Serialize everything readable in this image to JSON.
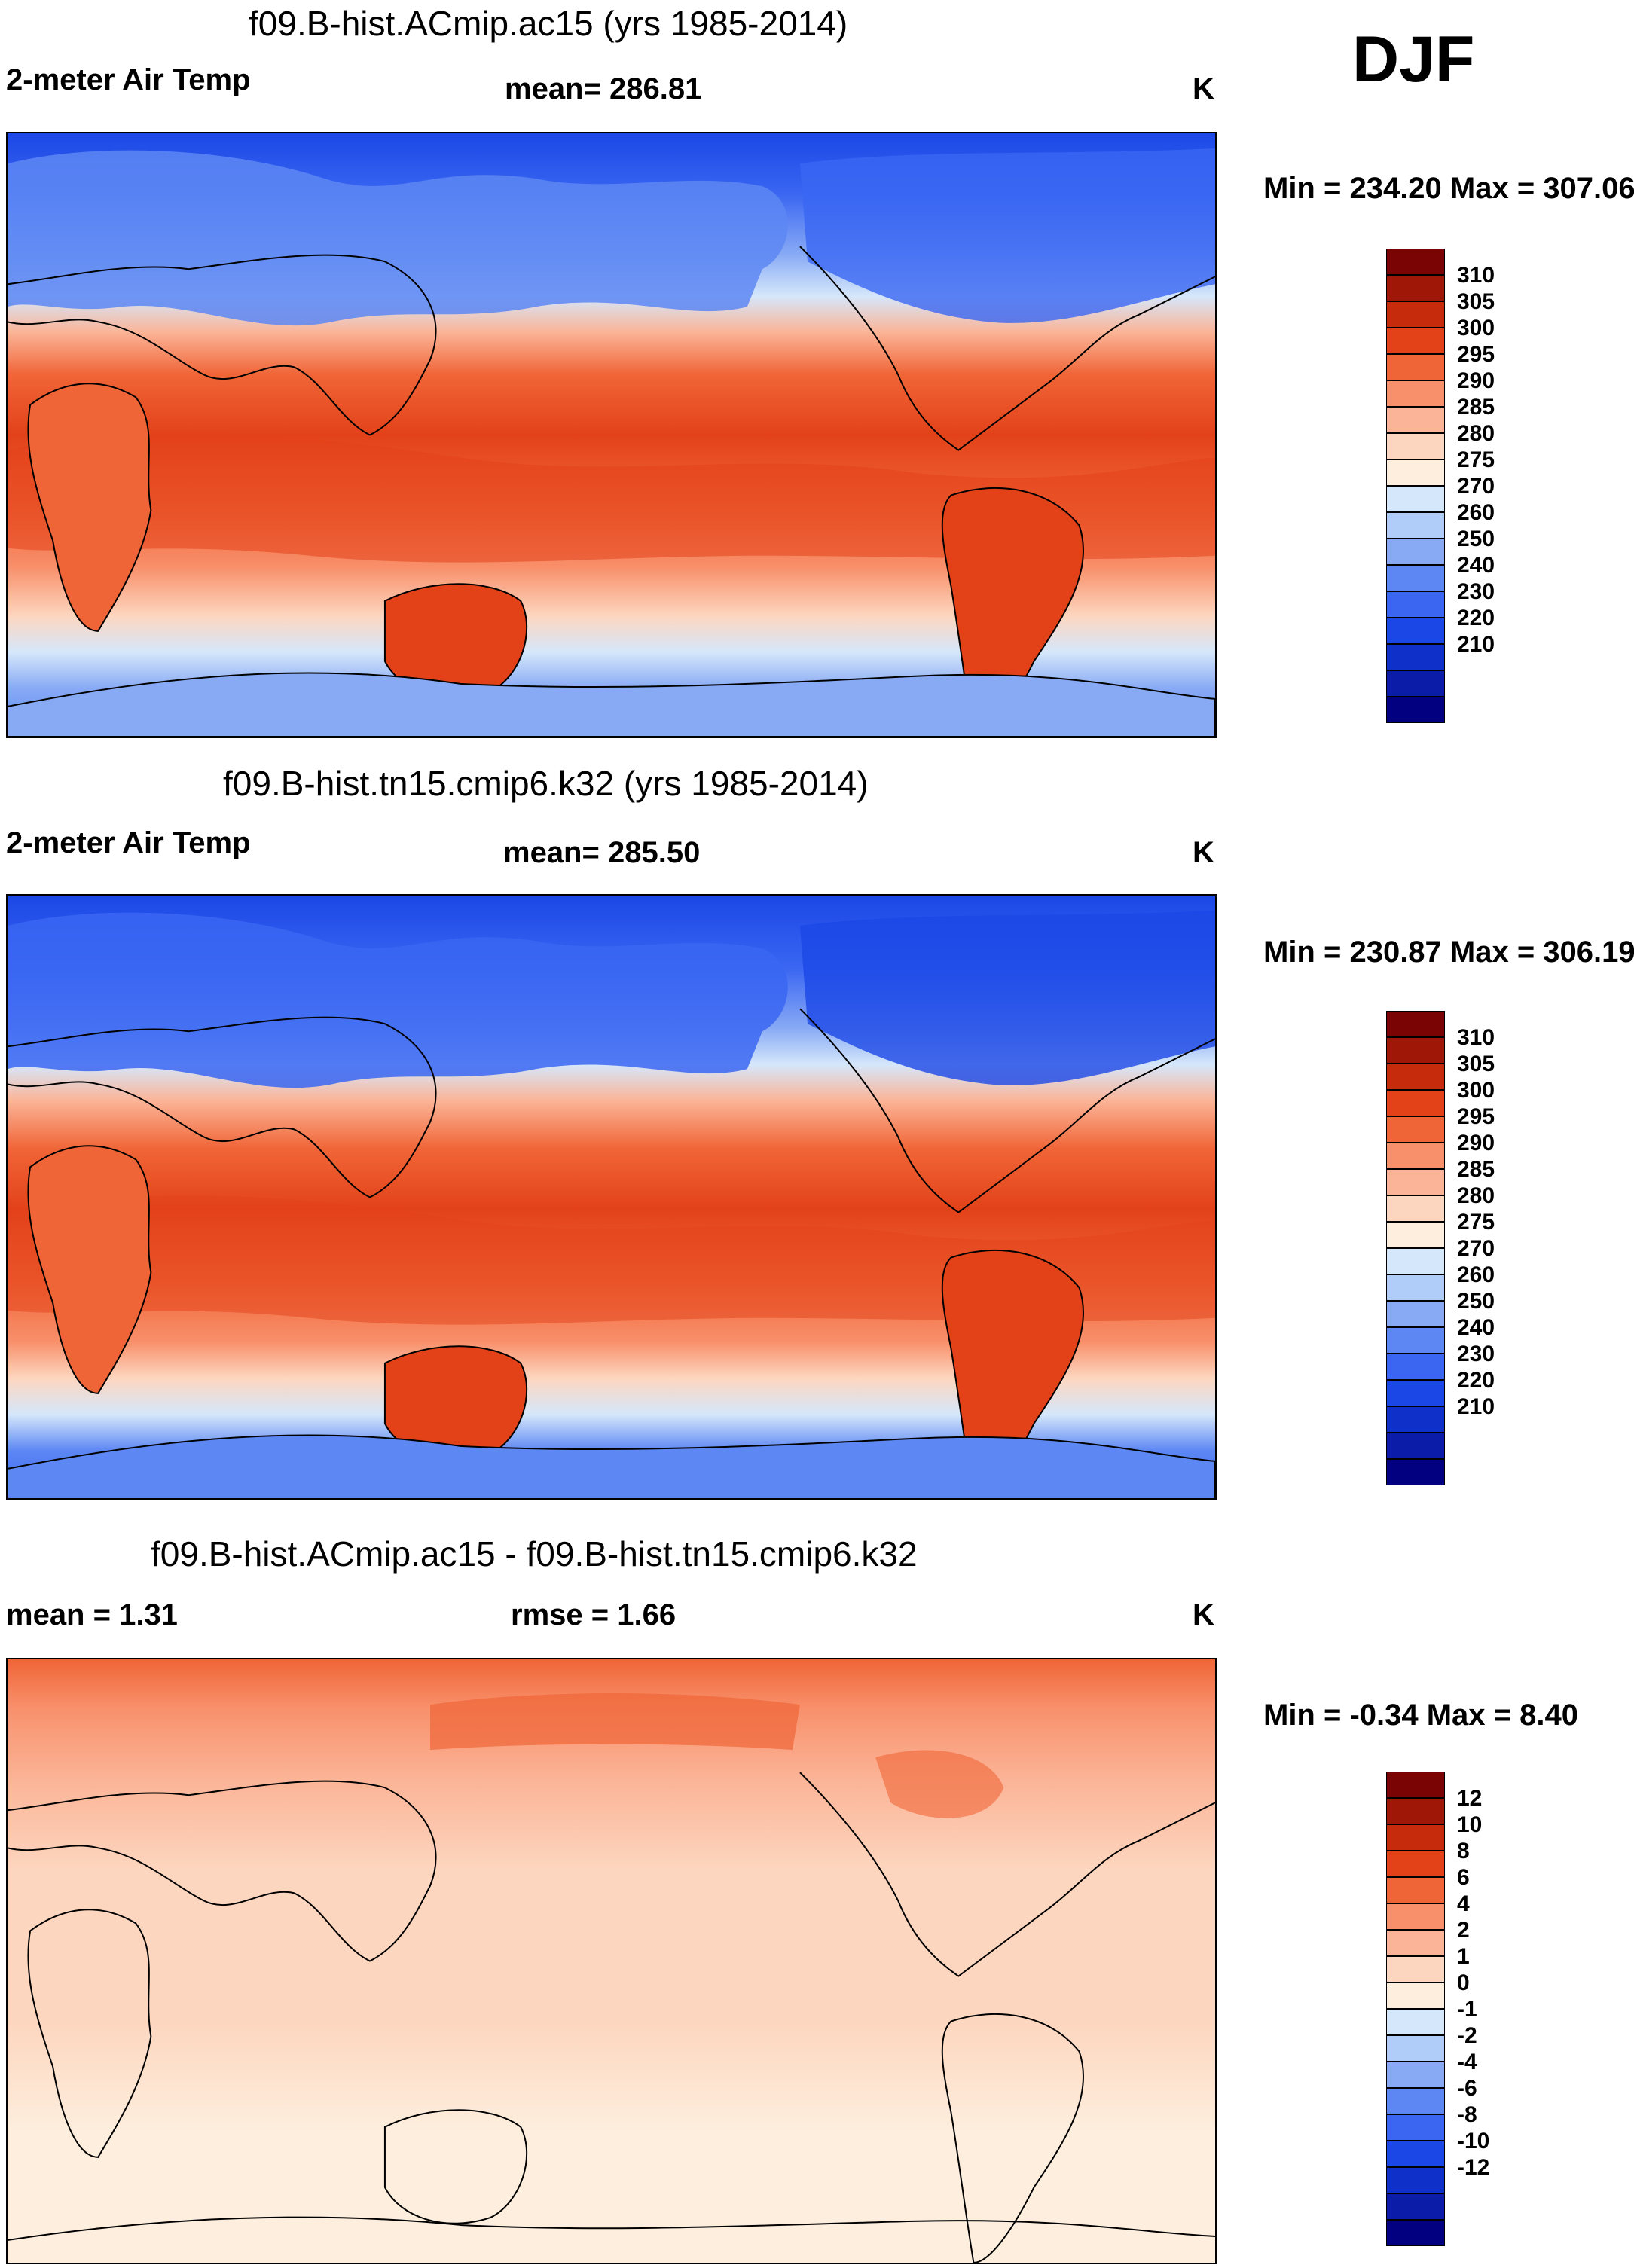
{
  "season": "DJF",
  "panels": [
    {
      "title": "f09.B-hist.ACmip.ac15 (yrs 1985-2014)",
      "left_label": "2-meter Air Temp",
      "center_label": "mean= 286.81",
      "units": "K",
      "minmax": "Min = 234.20 Max = 307.06",
      "kind": "absolute",
      "colorbar": {
        "colors": [
          "#020080",
          "#0a1ca8",
          "#1031c9",
          "#1b47e6",
          "#3a66f2",
          "#5d87f3",
          "#88aaf5",
          "#b0ccf8",
          "#d5e7fb",
          "#fdeedd",
          "#fdd6bf",
          "#fbb497",
          "#f8906b",
          "#f06537",
          "#e34219",
          "#c62b0b",
          "#9e1707",
          "#7a0404"
        ],
        "ticks": [
          "310",
          "305",
          "300",
          "295",
          "290",
          "285",
          "280",
          "275",
          "270",
          "260",
          "250",
          "240",
          "230",
          "220",
          "210"
        ]
      }
    },
    {
      "title": "f09.B-hist.tn15.cmip6.k32 (yrs 1985-2014)",
      "left_label": "2-meter Air Temp",
      "center_label": "mean= 285.50",
      "units": "K",
      "minmax": "Min = 230.87 Max = 306.19",
      "kind": "absolute",
      "colorbar": {
        "colors": [
          "#020080",
          "#0a1ca8",
          "#1031c9",
          "#1b47e6",
          "#3a66f2",
          "#5d87f3",
          "#88aaf5",
          "#b0ccf8",
          "#d5e7fb",
          "#fdeedd",
          "#fdd6bf",
          "#fbb497",
          "#f8906b",
          "#f06537",
          "#e34219",
          "#c62b0b",
          "#9e1707",
          "#7a0404"
        ],
        "ticks": [
          "310",
          "305",
          "300",
          "295",
          "290",
          "285",
          "280",
          "275",
          "270",
          "260",
          "250",
          "240",
          "230",
          "220",
          "210"
        ]
      }
    },
    {
      "title": "f09.B-hist.ACmip.ac15 - f09.B-hist.tn15.cmip6.k32",
      "left_label": "mean =   1.31",
      "center_label": "rmse =   1.66",
      "units": "K",
      "minmax": "Min =  -0.34 Max =   8.40",
      "kind": "difference",
      "colorbar": {
        "colors": [
          "#020080",
          "#0a1ca8",
          "#1031c9",
          "#1b47e6",
          "#3a66f2",
          "#5d87f3",
          "#88aaf5",
          "#b0ccf8",
          "#d5e7fb",
          "#fdeedd",
          "#fdd6bf",
          "#fbb497",
          "#f8906b",
          "#f06537",
          "#e34219",
          "#c62b0b",
          "#9e1707",
          "#7a0404"
        ],
        "ticks": [
          "12",
          "10",
          "8",
          "6",
          "4",
          "2",
          "1",
          "0",
          "-1",
          "-2",
          "-4",
          "-6",
          "-8",
          "-10",
          "-12"
        ]
      }
    }
  ]
}
